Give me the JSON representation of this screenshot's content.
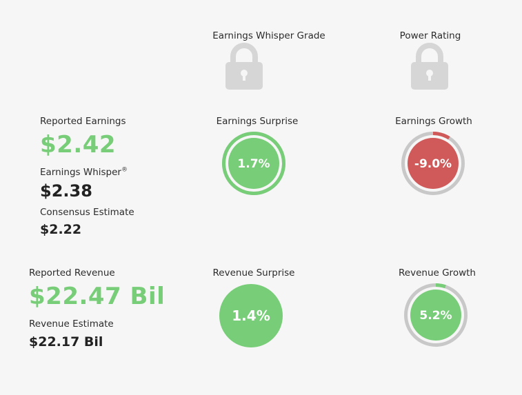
{
  "grades": {
    "earnings_whisper_grade_label": "Earnings Whisper Grade",
    "power_rating_label": "Power Rating"
  },
  "earnings": {
    "reported_label": "Reported Earnings",
    "reported_value": "$2.42",
    "whisper_label": "Earnings Whisper",
    "whisper_mark": "®",
    "whisper_value": "$2.38",
    "consensus_label": "Consensus Estimate",
    "consensus_value": "$2.22",
    "surprise_label": "Earnings Surprise",
    "surprise_value": "1.7%",
    "surprise_pct": 1.7,
    "growth_label": "Earnings Growth",
    "growth_value": "-9.0%",
    "growth_pct": -9.0
  },
  "revenue": {
    "reported_label": "Reported Revenue",
    "reported_value": "$22.47 Bil",
    "estimate_label": "Revenue Estimate",
    "estimate_value": "$22.17 Bil",
    "surprise_label": "Revenue Surprise",
    "surprise_value": "1.4%",
    "surprise_pct": 1.4,
    "growth_label": "Revenue Growth",
    "growth_value": "5.2%",
    "growth_pct": 5.2
  },
  "colors": {
    "positive": "#78cd78",
    "negative": "#d05a5a",
    "track": "#c8c8c8",
    "lock": "#d6d6d6"
  },
  "icons": {
    "grade_lock": "lock-icon",
    "power_lock": "lock-icon"
  }
}
